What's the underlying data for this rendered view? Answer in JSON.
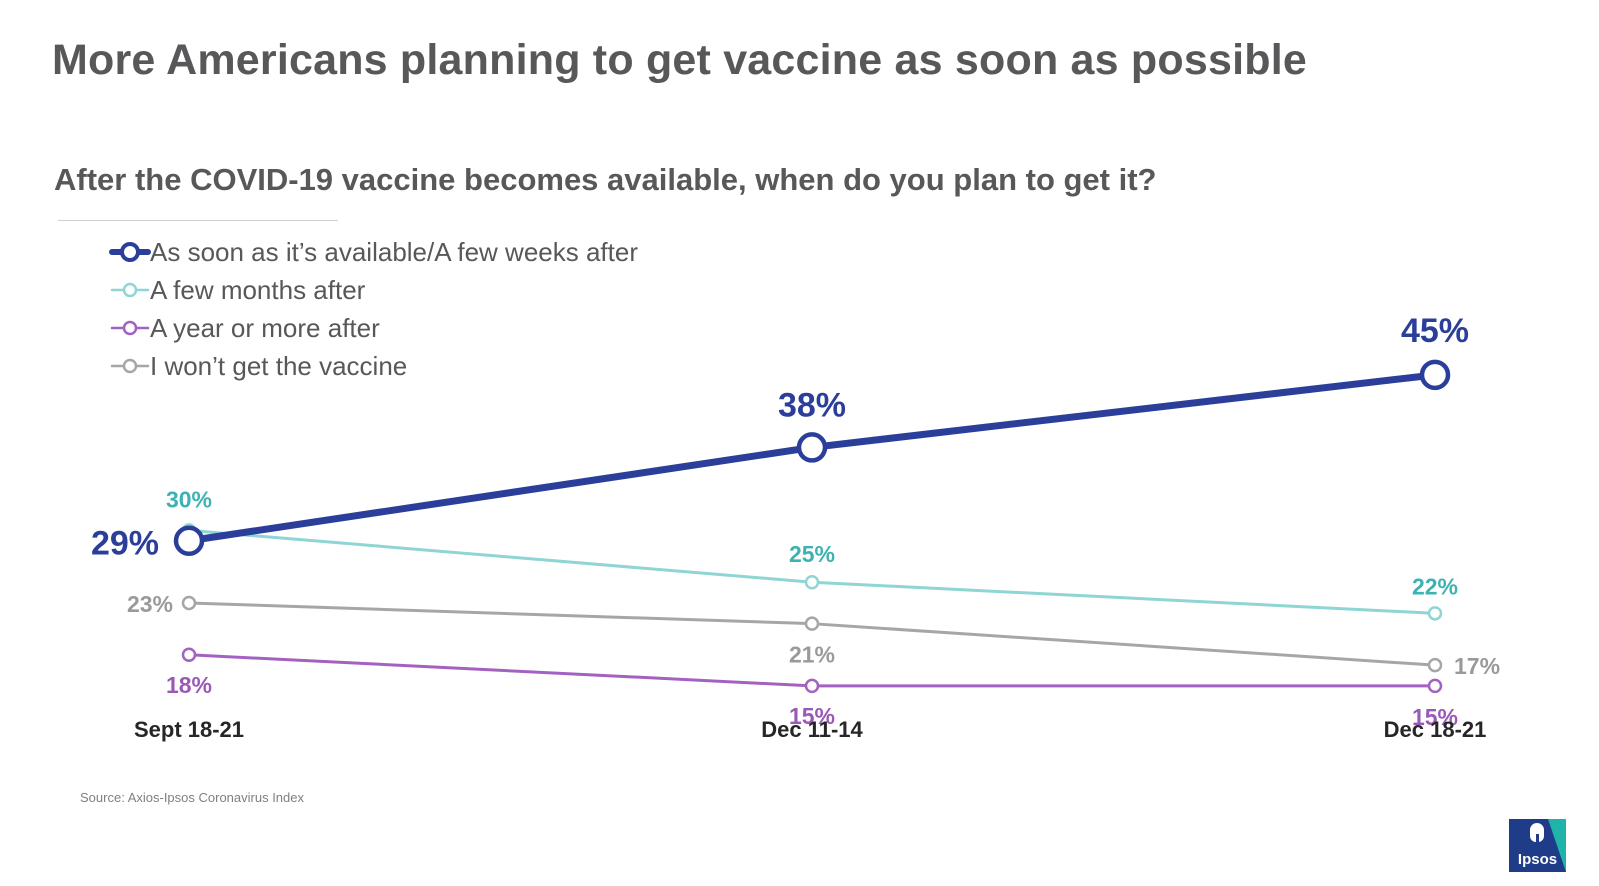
{
  "title": "More Americans planning to get vaccine as soon as possible",
  "subtitle": "After the COVID-19 vaccine becomes  available, when do you plan to get it?",
  "source": "Source: Axios-Ipsos Coronavirus Index",
  "logo_text": "Ipsos",
  "chart_data": {
    "type": "line",
    "categories": [
      "Sept 18-21",
      "Dec 11-14",
      "Dec 18-21"
    ],
    "y_unit": "%",
    "ylim": [
      10,
      50
    ],
    "grid": false,
    "legend_position": "top-left",
    "series": [
      {
        "name": "As soon as it’s available/A few weeks after",
        "values": [
          29,
          38,
          45
        ],
        "color": "#2b3f9a",
        "emphasis": true,
        "labels": [
          "29%",
          "38%",
          "45%"
        ]
      },
      {
        "name": "A few months after",
        "values": [
          30,
          25,
          22
        ],
        "color": "#8fd5d4",
        "label_color": "#3cb3b3",
        "labels": [
          "30%",
          "25%",
          "22%"
        ]
      },
      {
        "name": "A year or more after",
        "values": [
          18,
          15,
          15
        ],
        "color": "#a462c0",
        "label_color": "#9b59b6",
        "labels": [
          "18%",
          "15%",
          "15%"
        ]
      },
      {
        "name": "I won’t get the vaccine",
        "values": [
          23,
          21,
          17
        ],
        "color": "#a6a6a6",
        "label_color": "#9a9a9a",
        "labels": [
          "23%",
          "21%",
          "17%"
        ]
      }
    ]
  }
}
